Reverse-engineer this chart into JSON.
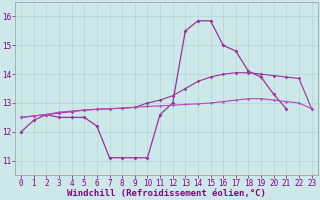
{
  "xlabel": "Windchill (Refroidissement éolien,°C)",
  "xlim": [
    -0.5,
    23.5
  ],
  "ylim": [
    10.5,
    16.5
  ],
  "xticks": [
    0,
    1,
    2,
    3,
    4,
    5,
    6,
    7,
    8,
    9,
    10,
    11,
    12,
    13,
    14,
    15,
    16,
    17,
    18,
    19,
    20,
    21,
    22,
    23
  ],
  "yticks": [
    11,
    12,
    13,
    14,
    15,
    16
  ],
  "bg_color": "#cce8e8",
  "grid_color": "#aacccc",
  "line_color1": "#993399",
  "line_color2": "#bb44bb",
  "line_color3": "#993399",
  "series1": [
    12.0,
    12.4,
    12.6,
    12.5,
    12.5,
    12.5,
    12.2,
    11.1,
    11.1,
    11.1,
    11.1,
    12.6,
    13.0,
    15.5,
    15.85,
    15.85,
    15.0,
    14.8,
    14.1,
    13.9,
    13.3,
    12.8,
    null,
    null
  ],
  "series2": [
    12.5,
    12.55,
    12.6,
    12.68,
    12.72,
    12.76,
    12.78,
    12.8,
    12.82,
    12.85,
    12.88,
    12.9,
    12.92,
    12.95,
    12.97,
    13.0,
    13.05,
    13.1,
    13.15,
    13.15,
    13.1,
    13.05,
    13.0,
    12.8
  ],
  "series3": [
    12.5,
    12.55,
    12.6,
    12.65,
    12.7,
    12.75,
    12.78,
    12.8,
    12.82,
    12.85,
    13.0,
    13.1,
    13.25,
    13.5,
    13.75,
    13.9,
    14.0,
    14.05,
    14.05,
    14.0,
    13.95,
    13.9,
    13.85,
    12.8
  ],
  "tick_fontsize": 5.5,
  "xlabel_fontsize": 6.5
}
